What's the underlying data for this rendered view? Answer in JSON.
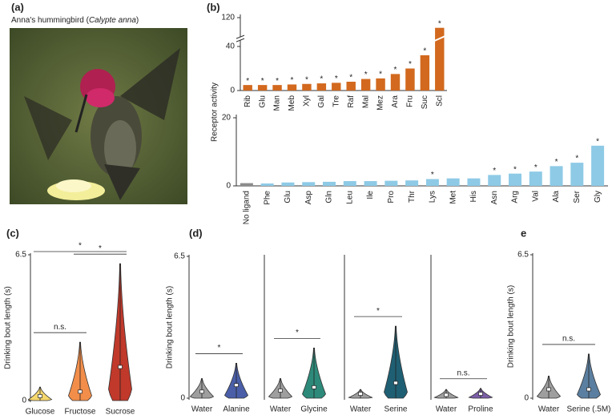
{
  "panel_labels": [
    "(a)",
    "(b)",
    "(c)",
    "(d)",
    "e"
  ],
  "photo_caption": [
    "Anna's hummingbird (",
    "Calypte anna",
    ")"
  ],
  "chart_data": [
    {
      "type": "bar",
      "y_label": "Receptor activity",
      "categories": [
        "Rib",
        "Glu",
        "Man",
        "Meb",
        "Xyl",
        "Gal",
        "Tre",
        "Raf",
        "Mal",
        "Mez",
        "Ara",
        "Fru",
        "Suc",
        "Scl"
      ],
      "values": [
        5,
        5,
        5,
        5.5,
        6,
        6.5,
        7,
        8,
        10.5,
        11,
        15,
        20,
        32,
        109
      ],
      "significance": [
        "*",
        "*",
        "*",
        "*",
        "*",
        "*",
        "*",
        "*",
        "*",
        "*",
        "*",
        "*",
        "*",
        "*"
      ],
      "color": "#d2691e",
      "ylim": [
        0,
        120
      ],
      "yticks": [
        0,
        40,
        120
      ],
      "y_break": [
        45,
        100
      ]
    },
    {
      "type": "bar",
      "categories": [
        "No ligand",
        "Phe",
        "Glu",
        "Asp",
        "Gln",
        "Leu",
        "Ile",
        "Pro",
        "Thr",
        "Lys",
        "Met",
        "His",
        "Asn",
        "Arg",
        "Val",
        "Ala",
        "Ser",
        "Gly"
      ],
      "values": [
        0.8,
        0.7,
        1,
        1.1,
        1.2,
        1.4,
        1.4,
        1.5,
        1.6,
        2,
        2.2,
        2.2,
        3.2,
        3.6,
        4.2,
        5.8,
        6.8,
        11.8
      ],
      "significance": [
        null,
        null,
        null,
        null,
        null,
        null,
        null,
        null,
        null,
        "*",
        null,
        null,
        "*",
        "*",
        "*",
        "*",
        "*",
        "*"
      ],
      "colors": [
        "#8c8c8c",
        "#8ecae6",
        "#8ecae6",
        "#8ecae6",
        "#8ecae6",
        "#8ecae6",
        "#8ecae6",
        "#8ecae6",
        "#8ecae6",
        "#8ecae6",
        "#8ecae6",
        "#8ecae6",
        "#8ecae6",
        "#8ecae6",
        "#8ecae6",
        "#8ecae6",
        "#8ecae6",
        "#8ecae6"
      ],
      "ylim": [
        0,
        20
      ],
      "yticks": [
        0,
        20
      ]
    },
    {
      "type": "violin",
      "y_label": "Drinking bout length (s)",
      "categories": [
        "Glucose",
        "Fructose",
        "Sucrose"
      ],
      "max": [
        0.6,
        2.6,
        6.1
      ],
      "median": [
        0.2,
        0.4,
        1.5
      ],
      "colors": [
        "#f5d76e",
        "#f28e4a",
        "#c0392b"
      ],
      "ylim": [
        0,
        6.5
      ],
      "yticks": [
        0,
        6.5
      ],
      "comparisons": [
        {
          "pair": [
            0,
            2
          ],
          "label": "*"
        },
        {
          "pair": [
            1,
            2
          ],
          "label": "*"
        },
        {
          "pair": [
            0,
            1
          ],
          "label": "n.s."
        }
      ]
    },
    {
      "type": "violin",
      "y_label": "Drinking bout length (s)",
      "categories": [
        "Water",
        "Alanine"
      ],
      "max": [
        0.9,
        1.6
      ],
      "median": [
        0.3,
        0.6
      ],
      "colors": [
        "#9e9e9e",
        "#4a5fa8"
      ],
      "ylim": [
        0,
        6.5
      ],
      "yticks": [
        0,
        6.5
      ],
      "comparisons": [
        {
          "pair": [
            0,
            1
          ],
          "label": "*"
        }
      ]
    },
    {
      "type": "violin",
      "categories": [
        "Water",
        "Glycine"
      ],
      "max": [
        0.9,
        2.3
      ],
      "median": [
        0.35,
        0.5
      ],
      "colors": [
        "#9e9e9e",
        "#2d8a7a"
      ],
      "ylim": [
        0,
        6.5
      ],
      "comparisons": [
        {
          "pair": [
            0,
            1
          ],
          "label": "*"
        }
      ]
    },
    {
      "type": "violin",
      "categories": [
        "Water",
        "Serine"
      ],
      "max": [
        0.4,
        3.3
      ],
      "median": [
        0.2,
        0.7
      ],
      "colors": [
        "#9e9e9e",
        "#1f5f73"
      ],
      "ylim": [
        0,
        6.5
      ],
      "comparisons": [
        {
          "pair": [
            0,
            1
          ],
          "label": "*"
        }
      ]
    },
    {
      "type": "violin",
      "categories": [
        "Water",
        "Proline"
      ],
      "max": [
        0.4,
        0.45
      ],
      "median": [
        0.15,
        0.2
      ],
      "colors": [
        "#9e9e9e",
        "#7b5ea7"
      ],
      "ylim": [
        0,
        6.5
      ],
      "comparisons": [
        {
          "pair": [
            0,
            1
          ],
          "label": "n.s."
        }
      ]
    },
    {
      "type": "violin",
      "y_label": "Drinking bout length (s)",
      "categories": [
        "Water",
        "Serine (.5M)"
      ],
      "max": [
        1,
        2
      ],
      "median": [
        0.4,
        0.4
      ],
      "colors": [
        "#9e9e9e",
        "#5b7fa0"
      ],
      "ylim": [
        0,
        6.5
      ],
      "yticks": [
        0,
        6.5
      ],
      "comparisons": [
        {
          "pair": [
            0,
            1
          ],
          "label": "n.s."
        }
      ]
    }
  ]
}
